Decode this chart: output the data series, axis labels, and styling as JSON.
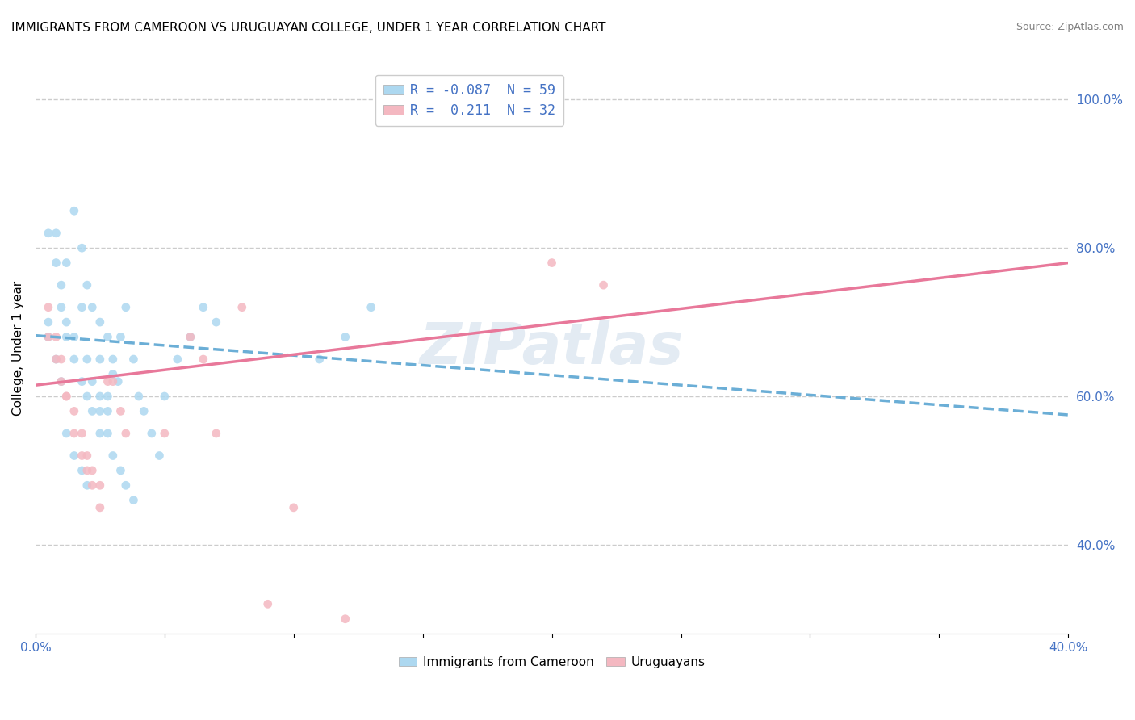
{
  "title": "IMMIGRANTS FROM CAMEROON VS URUGUAYAN COLLEGE, UNDER 1 YEAR CORRELATION CHART",
  "source": "Source: ZipAtlas.com",
  "xlabel_bottom": "",
  "ylabel": "College, Under 1 year",
  "x_bottom_labels": [
    "0.0%",
    "40.0%"
  ],
  "y_right_labels": [
    "40.0%",
    "60.0%",
    "80.0%",
    "100.0%"
  ],
  "xlim": [
    0.0,
    0.4
  ],
  "ylim": [
    0.28,
    1.05
  ],
  "legend_entries": [
    {
      "label": "R = -0.087  N = 59",
      "color": "#add8f0"
    },
    {
      "label": "R =  0.211  N = 32",
      "color": "#f4b8c1"
    }
  ],
  "legend_bottom": [
    "Immigrants from Cameroon",
    "Uruguayans"
  ],
  "blue_scatter_x": [
    0.005,
    0.008,
    0.012,
    0.015,
    0.018,
    0.02,
    0.022,
    0.025,
    0.025,
    0.028,
    0.01,
    0.012,
    0.015,
    0.018,
    0.02,
    0.022,
    0.025,
    0.028,
    0.03,
    0.032,
    0.005,
    0.008,
    0.01,
    0.012,
    0.015,
    0.018,
    0.02,
    0.022,
    0.025,
    0.028,
    0.03,
    0.033,
    0.035,
    0.038,
    0.04,
    0.042,
    0.045,
    0.048,
    0.05,
    0.055,
    0.005,
    0.008,
    0.01,
    0.012,
    0.015,
    0.018,
    0.02,
    0.06,
    0.065,
    0.07,
    0.025,
    0.028,
    0.03,
    0.033,
    0.035,
    0.038,
    0.11,
    0.12,
    0.13
  ],
  "blue_scatter_y": [
    0.68,
    0.82,
    0.78,
    0.85,
    0.8,
    0.75,
    0.72,
    0.7,
    0.65,
    0.68,
    0.75,
    0.7,
    0.68,
    0.72,
    0.65,
    0.62,
    0.6,
    0.58,
    0.65,
    0.62,
    0.82,
    0.78,
    0.72,
    0.68,
    0.65,
    0.62,
    0.6,
    0.58,
    0.55,
    0.6,
    0.63,
    0.68,
    0.72,
    0.65,
    0.6,
    0.58,
    0.55,
    0.52,
    0.6,
    0.65,
    0.7,
    0.65,
    0.62,
    0.55,
    0.52,
    0.5,
    0.48,
    0.68,
    0.72,
    0.7,
    0.58,
    0.55,
    0.52,
    0.5,
    0.48,
    0.46,
    0.65,
    0.68,
    0.72
  ],
  "pink_scatter_x": [
    0.005,
    0.008,
    0.01,
    0.012,
    0.015,
    0.018,
    0.02,
    0.022,
    0.025,
    0.028,
    0.005,
    0.008,
    0.01,
    0.012,
    0.015,
    0.018,
    0.02,
    0.022,
    0.025,
    0.05,
    0.03,
    0.033,
    0.035,
    0.06,
    0.065,
    0.07,
    0.08,
    0.09,
    0.2,
    0.22,
    0.1,
    0.12
  ],
  "pink_scatter_y": [
    0.68,
    0.65,
    0.62,
    0.6,
    0.58,
    0.55,
    0.52,
    0.5,
    0.48,
    0.62,
    0.72,
    0.68,
    0.65,
    0.6,
    0.55,
    0.52,
    0.5,
    0.48,
    0.45,
    0.55,
    0.62,
    0.58,
    0.55,
    0.68,
    0.65,
    0.55,
    0.72,
    0.32,
    0.78,
    0.75,
    0.45,
    0.3
  ],
  "blue_trend_x": [
    0.0,
    0.4
  ],
  "blue_trend_y": [
    0.682,
    0.575
  ],
  "pink_trend_x": [
    0.0,
    0.4
  ],
  "pink_trend_y": [
    0.615,
    0.78
  ],
  "dot_size": 60,
  "blue_color": "#add8f0",
  "pink_color": "#f4b8c1",
  "blue_line_color": "#6baed6",
  "pink_line_color": "#e8789a",
  "watermark": "ZIPatlas",
  "title_fontsize": 11,
  "axis_label_fontsize": 11,
  "tick_fontsize": 11
}
